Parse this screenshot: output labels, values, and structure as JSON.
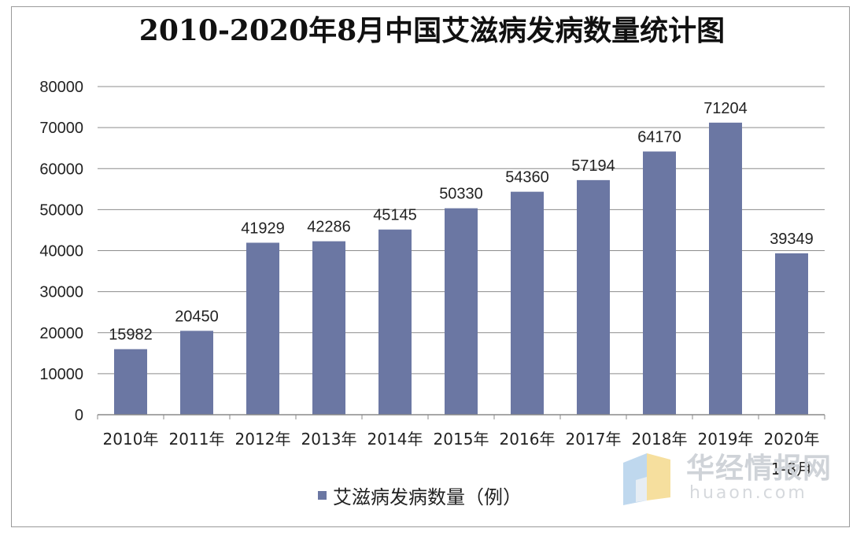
{
  "chart_data": {
    "type": "bar",
    "title": "2010-2020年8月中国艾滋病发病数量统计图",
    "categories": [
      "2010年",
      "2011年",
      "2012年",
      "2013年",
      "2014年",
      "2015年",
      "2016年",
      "2017年",
      "2018年",
      "2019年",
      "2020年"
    ],
    "category_sublabels": [
      "",
      "",
      "",
      "",
      "",
      "",
      "",
      "",
      "",
      "",
      "1-8月"
    ],
    "series": [
      {
        "name": "艾滋病发病数量（例）",
        "values": [
          15982,
          20450,
          41929,
          42286,
          45145,
          50330,
          54360,
          57194,
          64170,
          71204,
          39349
        ]
      }
    ],
    "data_labels": [
      "15982",
      "20450",
      "41929",
      "42286",
      "45145",
      "50330",
      "54360",
      "57194",
      "64170",
      "71204",
      "39349"
    ],
    "ylim": [
      0,
      80000
    ],
    "yticks": [
      "0",
      "10000",
      "20000",
      "30000",
      "40000",
      "50000",
      "60000",
      "70000",
      "80000"
    ],
    "xlabel": "",
    "ylabel": "",
    "grid": true,
    "legend_position": "bottom",
    "bar_color": "#6b77a3"
  },
  "watermark": {
    "name_cn": "华经情报网",
    "domain": "huaon.com"
  }
}
